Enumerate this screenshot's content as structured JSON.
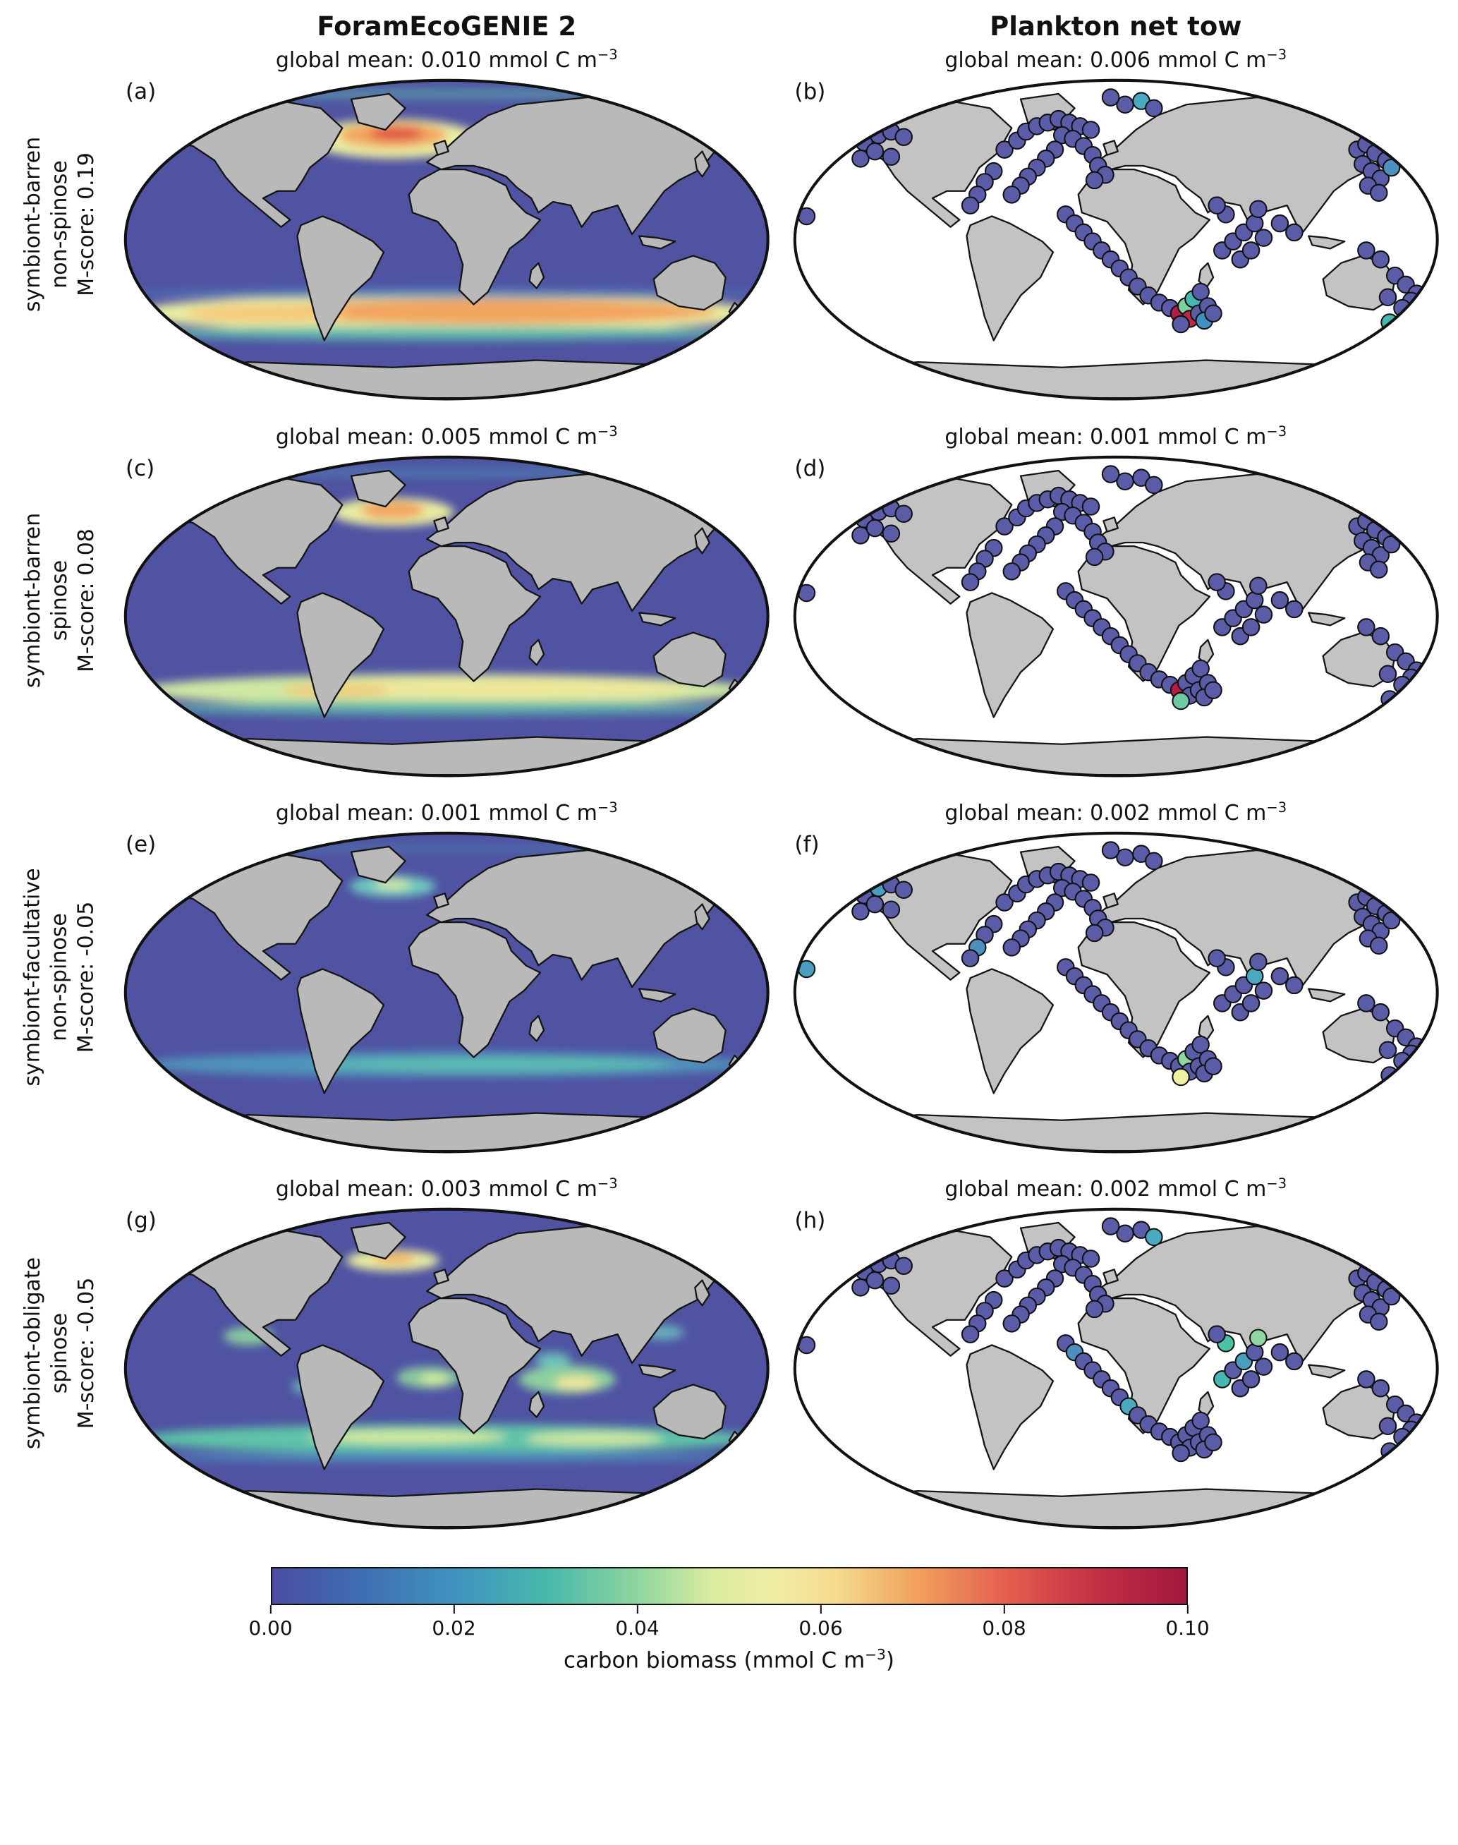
{
  "header": {
    "left_title": "ForamEcoGENIE 2",
    "right_title": "Plankton net tow"
  },
  "unit": {
    "text": "mmol C m",
    "exp": "−3"
  },
  "rows": [
    {
      "label_lines": [
        "symbiont-barren",
        "non-spinose",
        "M-score: 0.19"
      ],
      "model": {
        "letter": "(a)",
        "mean": "global mean: 0.010"
      },
      "obs": {
        "letter": "(b)",
        "mean": "global mean: 0.006"
      }
    },
    {
      "label_lines": [
        "symbiont-barren",
        "spinose",
        "M-score: 0.08"
      ],
      "model": {
        "letter": "(c)",
        "mean": "global mean: 0.005"
      },
      "obs": {
        "letter": "(d)",
        "mean": "global mean: 0.001"
      }
    },
    {
      "label_lines": [
        "symbiont-facultative",
        "non-spinose",
        "M-score: -0.05"
      ],
      "model": {
        "letter": "(e)",
        "mean": "global mean: 0.001"
      },
      "obs": {
        "letter": "(f)",
        "mean": "global mean: 0.002"
      }
    },
    {
      "label_lines": [
        "symbiont-obligate",
        "spinose",
        "M-score: -0.05"
      ],
      "model": {
        "letter": "(g)",
        "mean": "global mean: 0.003"
      },
      "obs": {
        "letter": "(h)",
        "mean": "global mean: 0.002"
      }
    }
  ],
  "colorbar": {
    "label_prefix": "carbon biomass (mmol C m",
    "label_exp": "−3",
    "label_suffix": ")",
    "ticks": [
      "0.00",
      "0.02",
      "0.04",
      "0.06",
      "0.08",
      "0.10"
    ]
  },
  "chart_data": {
    "type": "heatmap",
    "title": "Modelled (ForamEcoGENIE 2) vs observed (plankton net tow) planktic foraminifera carbon biomass",
    "projection": "robinson-like global maps",
    "colormap": {
      "label": "carbon biomass (mmol C m−3)",
      "range": [
        0.0,
        0.1
      ],
      "ticks": [
        0.0,
        0.02,
        0.04,
        0.06,
        0.08,
        0.1
      ],
      "stops": [
        [
          0,
          "#4a4ea1"
        ],
        [
          0.1,
          "#3f6fb3"
        ],
        [
          0.2,
          "#3f93c0"
        ],
        [
          0.3,
          "#49b8ab"
        ],
        [
          0.4,
          "#8fd6a0"
        ],
        [
          0.48,
          "#d9ec9f"
        ],
        [
          0.55,
          "#f2eda5"
        ],
        [
          0.62,
          "#f5d98e"
        ],
        [
          0.7,
          "#f2a55e"
        ],
        [
          0.8,
          "#e4604e"
        ],
        [
          0.9,
          "#c43046"
        ],
        [
          1,
          "#a0173c"
        ]
      ]
    },
    "groups": [
      {
        "name": "symbiont-barren non-spinose",
        "m_score": 0.19,
        "model_global_mean": 0.01,
        "nettow_global_mean": 0.006
      },
      {
        "name": "symbiont-barren spinose",
        "m_score": 0.08,
        "model_global_mean": 0.005,
        "nettow_global_mean": 0.001
      },
      {
        "name": "symbiont-facultative non-spinose",
        "m_score": -0.05,
        "model_global_mean": 0.001,
        "nettow_global_mean": 0.002
      },
      {
        "name": "symbiont-obligate spinose",
        "m_score": -0.05,
        "model_global_mean": 0.003,
        "nettow_global_mean": 0.002
      }
    ],
    "model_panels": [
      {
        "letter": "(a)",
        "global_mean": 0.01,
        "ocean_color": "#4f53a2",
        "bands": [
          [
            150,
            34,
            48,
            11,
            "#e9eda1",
            1
          ],
          [
            150,
            32,
            30,
            7,
            "#f2a55e",
            1
          ],
          [
            152,
            31,
            15,
            4,
            "#e05a4a",
            1
          ],
          [
            18,
            24,
            26,
            6,
            "#cfe8a2",
            0.95
          ],
          [
            343,
            20,
            22,
            5,
            "#bfe3a8",
            0.9
          ],
          [
            180,
            131,
            176,
            11,
            "#e9eda1",
            1
          ],
          [
            205,
            130,
            125,
            7,
            "#f2a55e",
            1
          ],
          [
            80,
            131,
            45,
            5,
            "#f5c878",
            0.95
          ],
          [
            180,
            142,
            170,
            4,
            "#5fc3ae",
            0.85
          ],
          [
            180,
            120,
            172,
            3,
            "#4f8fc0",
            0.6
          ],
          [
            180,
            9,
            150,
            3,
            "#5fc3ae",
            0.5
          ]
        ]
      },
      {
        "letter": "(c)",
        "global_mean": 0.005,
        "ocean_color": "#4f53a2",
        "bands": [
          [
            150,
            32,
            34,
            8,
            "#e9eda1",
            1
          ],
          [
            150,
            31,
            18,
            5,
            "#f2a55e",
            1
          ],
          [
            18,
            24,
            20,
            5,
            "#a8dca0",
            0.85
          ],
          [
            344,
            22,
            16,
            4,
            "#a8dca0",
            0.7
          ],
          [
            180,
            131,
            172,
            9,
            "#cfe8a2",
            1
          ],
          [
            205,
            130,
            110,
            6,
            "#ece79b",
            1
          ],
          [
            118,
            131,
            30,
            4,
            "#f0c878",
            0.85
          ],
          [
            180,
            141,
            168,
            4,
            "#5fc3ae",
            0.75
          ],
          [
            180,
            10,
            150,
            2.5,
            "#4fa9c0",
            0.4
          ]
        ]
      },
      {
        "letter": "(e)",
        "global_mean": 0.001,
        "ocean_color": "#4f53a2",
        "bands": [
          [
            150,
            31,
            24,
            6,
            "#6fc9c0",
            1
          ],
          [
            150,
            30,
            10,
            3,
            "#cfe8a2",
            1
          ],
          [
            344,
            22,
            14,
            3,
            "#5fc3ae",
            0.6
          ],
          [
            180,
            130,
            170,
            7,
            "#4f9fc0",
            0.85
          ],
          [
            205,
            130,
            100,
            4,
            "#5fc3ae",
            0.85
          ],
          [
            180,
            10,
            150,
            2,
            "#4fa9c0",
            0.3
          ]
        ]
      },
      {
        "letter": "(g)",
        "global_mean": 0.003,
        "ocean_color": "#4f53a2",
        "bands": [
          [
            150,
            30,
            26,
            6,
            "#e9eda1",
            1
          ],
          [
            151,
            29,
            12,
            3,
            "#f2b060",
            1
          ],
          [
            18,
            23,
            22,
            4,
            "#8fd6b0",
            0.9
          ],
          [
            70,
            72,
            14,
            5,
            "#8fd6a0",
            0.9
          ],
          [
            104,
            100,
            10,
            4,
            "#6fc9c0",
            0.85
          ],
          [
            170,
            95,
            18,
            6,
            "#8fd6a0",
            0.9
          ],
          [
            173,
            96,
            8,
            3,
            "#d9ec9f",
            0.95
          ],
          [
            247,
            96,
            27,
            8,
            "#8fd6a0",
            0.95
          ],
          [
            252,
            98,
            12,
            4,
            "#ece79b",
            1
          ],
          [
            239,
            85,
            10,
            4,
            "#6fc9c0",
            0.9
          ],
          [
            300,
            70,
            12,
            4,
            "#6fc9c0",
            0.8
          ],
          [
            332,
            24,
            18,
            4,
            "#8fd6a0",
            0.7
          ],
          [
            180,
            129,
            172,
            8,
            "#5fc3a8",
            1
          ],
          [
            158,
            128,
            55,
            4,
            "#cfe8a2",
            1
          ],
          [
            262,
            129,
            38,
            4,
            "#cfe8a2",
            0.95
          ],
          [
            180,
            139,
            160,
            3,
            "#4f9fc0",
            0.7
          ]
        ]
      }
    ],
    "default_point_color": "#5b5ca8",
    "stations": [
      [
        118,
        40
      ],
      [
        125,
        35
      ],
      [
        130,
        30
      ],
      [
        136,
        27
      ],
      [
        142,
        25
      ],
      [
        148,
        23
      ],
      [
        154,
        25
      ],
      [
        160,
        27
      ],
      [
        166,
        29
      ],
      [
        150,
        32
      ],
      [
        156,
        34
      ],
      [
        162,
        38
      ],
      [
        167,
        43
      ],
      [
        170,
        49
      ],
      [
        174,
        54
      ],
      [
        168,
        57
      ],
      [
        146,
        40
      ],
      [
        141,
        45
      ],
      [
        136,
        50
      ],
      [
        131,
        55
      ],
      [
        127,
        60
      ],
      [
        122,
        65
      ],
      [
        112,
        52
      ],
      [
        107,
        58
      ],
      [
        103,
        65
      ],
      [
        99,
        71
      ],
      [
        185,
        15
      ],
      [
        194,
        13
      ],
      [
        201,
        17
      ],
      [
        177,
        11
      ],
      [
        40,
        36
      ],
      [
        48,
        32
      ],
      [
        55,
        30
      ],
      [
        62,
        33
      ],
      [
        38,
        45
      ],
      [
        46,
        41
      ],
      [
        55,
        44
      ],
      [
        8,
        77
      ],
      [
        152,
        76
      ],
      [
        157,
        81
      ],
      [
        162,
        86
      ],
      [
        167,
        91
      ],
      [
        172,
        96
      ],
      [
        177,
        101
      ],
      [
        182,
        106
      ],
      [
        187,
        111
      ],
      [
        192,
        116
      ],
      [
        198,
        121
      ],
      [
        204,
        125
      ],
      [
        210,
        128
      ],
      [
        215,
        131
      ],
      [
        219,
        127
      ],
      [
        223,
        123
      ],
      [
        227,
        119
      ],
      [
        221,
        134
      ],
      [
        216,
        137
      ],
      [
        226,
        131
      ],
      [
        231,
        127
      ],
      [
        229,
        135
      ],
      [
        234,
        131
      ],
      [
        239,
        96
      ],
      [
        245,
        91
      ],
      [
        251,
        86
      ],
      [
        257,
        81
      ],
      [
        241,
        76
      ],
      [
        236,
        71
      ],
      [
        249,
        101
      ],
      [
        255,
        96
      ],
      [
        262,
        89
      ],
      [
        259,
        73
      ],
      [
        271,
        81
      ],
      [
        279,
        86
      ],
      [
        314,
        40
      ],
      [
        319,
        37
      ],
      [
        324,
        42
      ],
      [
        330,
        46
      ],
      [
        317,
        48
      ],
      [
        322,
        52
      ],
      [
        327,
        56
      ],
      [
        333,
        50
      ],
      [
        320,
        60
      ],
      [
        326,
        64
      ],
      [
        319,
        96
      ],
      [
        327,
        101
      ],
      [
        335,
        110
      ],
      [
        341,
        115
      ],
      [
        347,
        120
      ],
      [
        344,
        124
      ],
      [
        339,
        128
      ],
      [
        331,
        122
      ],
      [
        332,
        136
      ]
    ],
    "obs_panels": [
      {
        "letter": "(b)",
        "global_mean": 0.006,
        "overrides": {
          "50": "#b41c41",
          "54": "#c22646",
          "51": "#7fcfa0",
          "52": "#45b8b0",
          "58": "#3f8fc0",
          "27": "#4aa9c0",
          "79": "#4f8fc0",
          "90": "#45b8b0"
        }
      },
      {
        "letter": "(d)",
        "global_mean": 0.001,
        "overrides": {
          "50": "#b41c41",
          "55": "#6fc9a3"
        }
      },
      {
        "letter": "(f)",
        "global_mean": 0.002,
        "overrides": {
          "51": "#8fd6a0",
          "55": "#eff0a2",
          "37": "#4a9fc0",
          "31": "#4a9fc0",
          "63": "#4aa9c0",
          "24": "#4f8fc0"
        }
      },
      {
        "letter": "(h)",
        "global_mean": 0.002,
        "overrides": {
          "64": "#49c2a5",
          "69": "#8fd6a0",
          "62": "#4a9fc0",
          "45": "#4aa9c0",
          "39": "#4f8fc0",
          "28": "#4aa9c0",
          "60": "#45b8b0"
        }
      }
    ]
  }
}
